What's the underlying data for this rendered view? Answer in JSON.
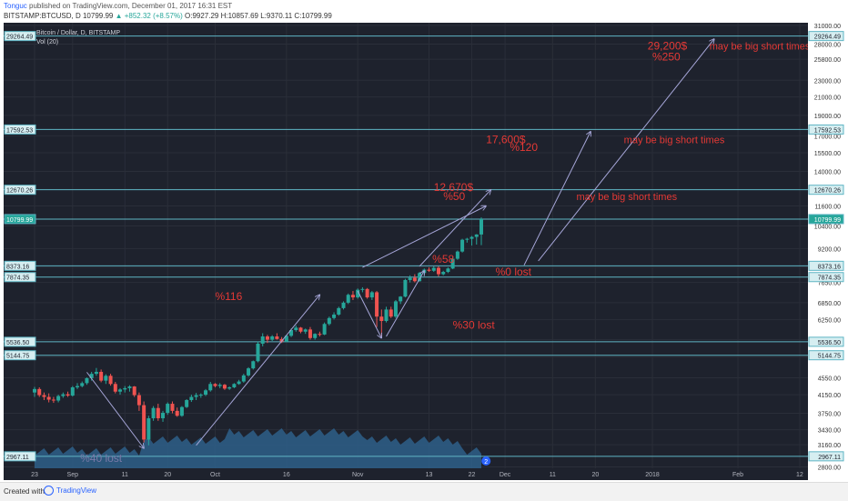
{
  "header": {
    "author": "Tonguc",
    "published": "published on TradingView.com, December 01, 2017 16:31 EST",
    "symbol": "BITSTAMP:BTCUSD, D",
    "last": "10799.99",
    "change": "▲ +852.32 (+8.57%)",
    "ohlc": "O:9927.29 H:10857.69 L:9370.11 C:10799.99"
  },
  "legend": {
    "title": "Bitcoin / Dollar, D, BITSTAMP",
    "indicator": "Vol (20)"
  },
  "footer": {
    "created": "Created with",
    "brand": "TradingView"
  },
  "colors": {
    "background": "#1e222d",
    "up": "#26a69a",
    "down": "#ef5350",
    "volume": "#2e5f8a",
    "level_line": "#5fb5c4",
    "arrow": "#a6a6d8",
    "annotation": "#e53935"
  },
  "chart_data": {
    "type": "candlestick",
    "title": "Bitcoin / Dollar, D, BITSTAMP",
    "y_scale": "log",
    "y_tick_labels": [
      "31000.00",
      "28000.00",
      "25800.00",
      "23000.00",
      "21000.00",
      "19000.00",
      "17000.00",
      "15500.00",
      "14000.00",
      "12700.00",
      "11600.00",
      "10400.00",
      "9200.00",
      "8300.00",
      "7650.00",
      "6850.00",
      "6250.00",
      "5600.00",
      "5100.00",
      "4550.00",
      "4150.00",
      "3750.00",
      "3430.00",
      "3160.00",
      "2800.00"
    ],
    "x_tick_labels": [
      "23",
      "Sep",
      "11",
      "20",
      "Oct",
      "16",
      "Nov",
      "13",
      "22",
      "Dec",
      "11",
      "20",
      "2018",
      "Feb",
      "12"
    ],
    "level_lines": [
      "29264.49",
      "17592.53",
      "12670.26",
      "10799.99",
      "8373.16",
      "7874.35",
      "5536.50",
      "5144.75",
      "2967.11"
    ],
    "ohlc": [
      [
        4200,
        4330,
        4100,
        4280
      ],
      [
        4280,
        4320,
        4100,
        4140
      ],
      [
        4140,
        4200,
        4030,
        4100
      ],
      [
        4100,
        4180,
        3980,
        4040
      ],
      [
        4040,
        4100,
        3970,
        4020
      ],
      [
        4020,
        4150,
        3980,
        4120
      ],
      [
        4120,
        4200,
        4080,
        4160
      ],
      [
        4160,
        4220,
        4100,
        4130
      ],
      [
        4130,
        4350,
        4110,
        4320
      ],
      [
        4320,
        4420,
        4280,
        4350
      ],
      [
        4350,
        4460,
        4320,
        4420
      ],
      [
        4420,
        4560,
        4380,
        4540
      ],
      [
        4540,
        4700,
        4480,
        4650
      ],
      [
        4650,
        4800,
        4600,
        4700
      ],
      [
        4700,
        4760,
        4440,
        4480
      ],
      [
        4480,
        4640,
        4400,
        4600
      ],
      [
        4600,
        4650,
        4360,
        4400
      ],
      [
        4400,
        4450,
        4180,
        4220
      ],
      [
        4220,
        4300,
        4150,
        4270
      ],
      [
        4270,
        4350,
        4200,
        4300
      ],
      [
        4300,
        4370,
        4220,
        4340
      ],
      [
        4340,
        4350,
        4100,
        4140
      ],
      [
        4140,
        4200,
        3800,
        3920
      ],
      [
        3920,
        4000,
        3200,
        3250
      ],
      [
        3250,
        3700,
        3150,
        3650
      ],
      [
        3650,
        3900,
        3600,
        3860
      ],
      [
        3860,
        3950,
        3600,
        3650
      ],
      [
        3650,
        3800,
        3580,
        3760
      ],
      [
        3760,
        3980,
        3720,
        3950
      ],
      [
        3950,
        4000,
        3750,
        3800
      ],
      [
        3800,
        3870,
        3680,
        3700
      ],
      [
        3700,
        3900,
        3680,
        3880
      ],
      [
        3880,
        4050,
        3860,
        4030
      ],
      [
        4030,
        4150,
        3990,
        4100
      ],
      [
        4100,
        4190,
        4030,
        4140
      ],
      [
        4140,
        4180,
        4080,
        4150
      ],
      [
        4150,
        4280,
        4120,
        4250
      ],
      [
        4250,
        4450,
        4220,
        4400
      ],
      [
        4400,
        4420,
        4320,
        4350
      ],
      [
        4350,
        4420,
        4300,
        4380
      ],
      [
        4380,
        4400,
        4260,
        4290
      ],
      [
        4290,
        4340,
        4260,
        4320
      ],
      [
        4320,
        4420,
        4300,
        4400
      ],
      [
        4400,
        4500,
        4380,
        4460
      ],
      [
        4460,
        4650,
        4430,
        4610
      ],
      [
        4610,
        4820,
        4580,
        4790
      ],
      [
        4790,
        5000,
        4760,
        4980
      ],
      [
        4980,
        5550,
        4950,
        5480
      ],
      [
        5480,
        5800,
        5400,
        5700
      ],
      [
        5700,
        5750,
        5500,
        5600
      ],
      [
        5600,
        5740,
        5560,
        5700
      ],
      [
        5700,
        5800,
        5600,
        5620
      ],
      [
        5620,
        5680,
        5500,
        5540
      ],
      [
        5540,
        5750,
        5520,
        5720
      ],
      [
        5720,
        5950,
        5680,
        5900
      ],
      [
        5900,
        6050,
        5850,
        5980
      ],
      [
        5980,
        6000,
        5800,
        5850
      ],
      [
        5850,
        5950,
        5780,
        5920
      ],
      [
        5920,
        6000,
        5600,
        5650
      ],
      [
        5650,
        5800,
        5600,
        5780
      ],
      [
        5780,
        5850,
        5700,
        5760
      ],
      [
        5760,
        6150,
        5740,
        6100
      ],
      [
        6100,
        6350,
        6050,
        6300
      ],
      [
        6300,
        6500,
        6250,
        6420
      ],
      [
        6420,
        6700,
        6380,
        6650
      ],
      [
        6650,
        6900,
        6600,
        6850
      ],
      [
        6850,
        7200,
        6800,
        7150
      ],
      [
        7150,
        7300,
        6950,
        7050
      ],
      [
        7050,
        7400,
        7000,
        7350
      ],
      [
        7350,
        7450,
        7250,
        7380
      ],
      [
        7380,
        7420,
        7000,
        7050
      ],
      [
        7050,
        7300,
        6950,
        7250
      ],
      [
        7250,
        7300,
        6000,
        6350
      ],
      [
        6350,
        6600,
        5700,
        6200
      ],
      [
        6200,
        6700,
        6150,
        6600
      ],
      [
        6600,
        6700,
        6300,
        6350
      ],
      [
        6350,
        6950,
        6300,
        6900
      ],
      [
        6900,
        7100,
        6800,
        7080
      ],
      [
        7080,
        7800,
        7050,
        7750
      ],
      [
        7750,
        7950,
        7650,
        7850
      ],
      [
        7850,
        8000,
        7650,
        7700
      ],
      [
        7700,
        8100,
        7680,
        8050
      ],
      [
        8050,
        8250,
        7950,
        8200
      ],
      [
        8200,
        8300,
        8100,
        8150
      ],
      [
        8150,
        8350,
        8100,
        8280
      ],
      [
        8280,
        8350,
        7900,
        8000
      ],
      [
        8000,
        8150,
        7950,
        8100
      ],
      [
        8100,
        8300,
        8050,
        8250
      ],
      [
        8250,
        8800,
        8220,
        8700
      ],
      [
        8700,
        9100,
        8650,
        9050
      ],
      [
        9050,
        9700,
        9000,
        9650
      ],
      [
        9650,
        9750,
        9500,
        9700
      ],
      [
        9700,
        9850,
        9350,
        9800
      ],
      [
        9800,
        9950,
        9400,
        9930
      ],
      [
        9930,
        10900,
        9370,
        10800
      ]
    ],
    "annotations": [
      "%40 lost",
      "%116",
      "%58",
      "%0 lost",
      "%30 lost",
      "12,670$",
      "%50",
      "17,600$",
      "%120",
      "29,200$",
      "%250",
      "may be big short times",
      "may be big short times",
      "may be big short times"
    ],
    "pane_badge": "2"
  }
}
